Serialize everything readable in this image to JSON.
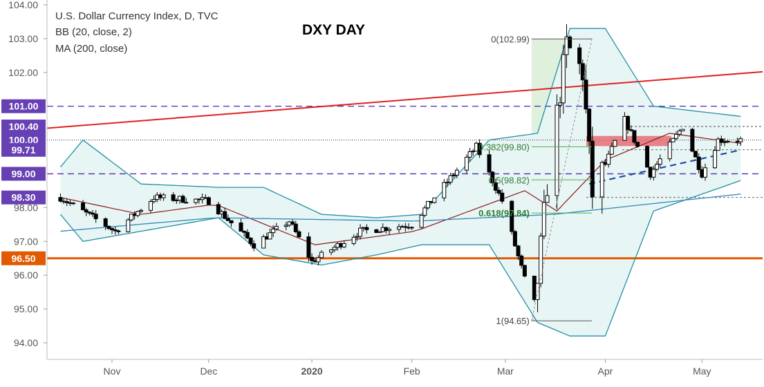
{
  "header": {
    "symbol": "U.S. Dollar Currency Index, D, TVC",
    "indicator_bb": "BB (20, close, 2)",
    "indicator_ma": "MA (200, close)",
    "title": "DXY DAY"
  },
  "colors": {
    "up": "#ffffff",
    "down": "#000000",
    "bb_band": "#1f8fa3",
    "bb_fill": "#e8f5f5",
    "bb_basis": "#8b1a1a",
    "ma200": "#2e86b8",
    "label_purple": "#6741b4",
    "label_orange": "#e05a00",
    "trend_red": "#e02020",
    "level_dash": "#5b3bb0",
    "fib_green": "#4caf50"
  },
  "chart_data": {
    "type": "candlestick",
    "title": "DXY DAY",
    "ylim": [
      94.0,
      104.0
    ],
    "y_ticks": [
      "104.00",
      "103.00",
      "102.00",
      "101.00",
      "100.40",
      "100.00",
      "99.71",
      "99.00",
      "98.30",
      "98.00",
      "97.00",
      "96.50",
      "96.00",
      "95.00",
      "94.00"
    ],
    "x_ticks": [
      "Nov",
      "Dec",
      "2020",
      "Feb",
      "Mar",
      "Apr",
      "May"
    ],
    "level_labels": [
      {
        "value": 101.0,
        "text": "101.00",
        "color": "purple"
      },
      {
        "value": 100.4,
        "text": "100.40",
        "color": "purple"
      },
      {
        "value": 100.0,
        "text": "100.00",
        "color": "purple"
      },
      {
        "value": 99.71,
        "text": "99.71",
        "color": "purple"
      },
      {
        "value": 99.0,
        "text": "99.00",
        "color": "purple"
      },
      {
        "value": 98.3,
        "text": "98.30",
        "color": "purple"
      },
      {
        "value": 96.5,
        "text": "96.50",
        "color": "orange"
      }
    ],
    "fib_levels": [
      {
        "label": "0(102.99)",
        "value": 102.99
      },
      {
        "label": "0.382(99.80)",
        "value": 99.8
      },
      {
        "label": "0.5(98.82)",
        "value": 98.82
      },
      {
        "label": "0.618(97.84)",
        "value": 97.84
      },
      {
        "label": "1(94.65)",
        "value": 94.65
      }
    ],
    "anchors": [
      {
        "date": "2019-10-14",
        "close": 98.3
      },
      {
        "date": "2019-10-31",
        "close": 97.3
      },
      {
        "date": "2019-11-12",
        "close": 98.3
      },
      {
        "date": "2019-11-29",
        "close": 98.2
      },
      {
        "date": "2019-12-13",
        "close": 96.9
      },
      {
        "date": "2019-12-24",
        "close": 97.6
      },
      {
        "date": "2019-12-31",
        "close": 96.4
      },
      {
        "date": "2020-01-15",
        "close": 97.3
      },
      {
        "date": "2020-01-31",
        "close": 97.5
      },
      {
        "date": "2020-02-20",
        "close": 99.8
      },
      {
        "date": "2020-02-28",
        "close": 98.2
      },
      {
        "date": "2020-03-09",
        "close": 94.9
      },
      {
        "date": "2020-03-13",
        "close": 98.7
      },
      {
        "date": "2020-03-19",
        "close": 102.8
      },
      {
        "date": "2020-03-24",
        "close": 102.0
      },
      {
        "date": "2020-03-27",
        "close": 98.4
      },
      {
        "date": "2020-04-06",
        "close": 100.6
      },
      {
        "date": "2020-04-14",
        "close": 99.0
      },
      {
        "date": "2020-04-24",
        "close": 100.4
      },
      {
        "date": "2020-04-30",
        "close": 99.0
      },
      {
        "date": "2020-05-05",
        "close": 100.0
      },
      {
        "date": "2020-05-12",
        "close": 100.0
      }
    ],
    "bb_anchors": [
      {
        "date": "2019-10-14",
        "upper": 99.2,
        "lower": 97.8
      },
      {
        "date": "2019-10-21",
        "upper": 100.0,
        "lower": 97.0
      },
      {
        "date": "2019-11-08",
        "upper": 98.7,
        "lower": 97.3
      },
      {
        "date": "2019-12-02",
        "upper": 98.6,
        "lower": 97.7
      },
      {
        "date": "2019-12-16",
        "upper": 98.6,
        "lower": 96.6
      },
      {
        "date": "2020-01-03",
        "upper": 97.8,
        "lower": 96.3
      },
      {
        "date": "2020-01-20",
        "upper": 97.7,
        "lower": 96.6
      },
      {
        "date": "2020-02-03",
        "upper": 97.8,
        "lower": 96.9
      },
      {
        "date": "2020-02-24",
        "upper": 100.0,
        "lower": 96.9
      },
      {
        "date": "2020-03-10",
        "upper": 100.2,
        "lower": 94.6
      },
      {
        "date": "2020-03-20",
        "upper": 103.3,
        "lower": 94.2
      },
      {
        "date": "2020-03-31",
        "upper": 103.3,
        "lower": 94.2
      },
      {
        "date": "2020-04-15",
        "upper": 101.0,
        "lower": 97.9
      },
      {
        "date": "2020-05-12",
        "upper": 100.7,
        "lower": 98.8
      }
    ],
    "basis_anchors": [
      {
        "date": "2019-10-14",
        "value": 98.3
      },
      {
        "date": "2019-11-08",
        "value": 97.8
      },
      {
        "date": "2019-12-01",
        "value": 98.1
      },
      {
        "date": "2020-01-01",
        "value": 96.9
      },
      {
        "date": "2020-02-01",
        "value": 97.3
      },
      {
        "date": "2020-03-06",
        "value": 98.5
      },
      {
        "date": "2020-03-16",
        "value": 97.9
      },
      {
        "date": "2020-03-31",
        "value": 99.4
      },
      {
        "date": "2020-04-20",
        "value": 100.2
      },
      {
        "date": "2020-05-12",
        "value": 99.9
      }
    ],
    "ma200_anchors": [
      {
        "date": "2019-10-14",
        "value": 97.3
      },
      {
        "date": "2019-12-01",
        "value": 97.7
      },
      {
        "date": "2020-02-01",
        "value": 97.6
      },
      {
        "date": "2020-03-15",
        "value": 97.8
      },
      {
        "date": "2020-05-12",
        "value": 98.4
      }
    ]
  }
}
